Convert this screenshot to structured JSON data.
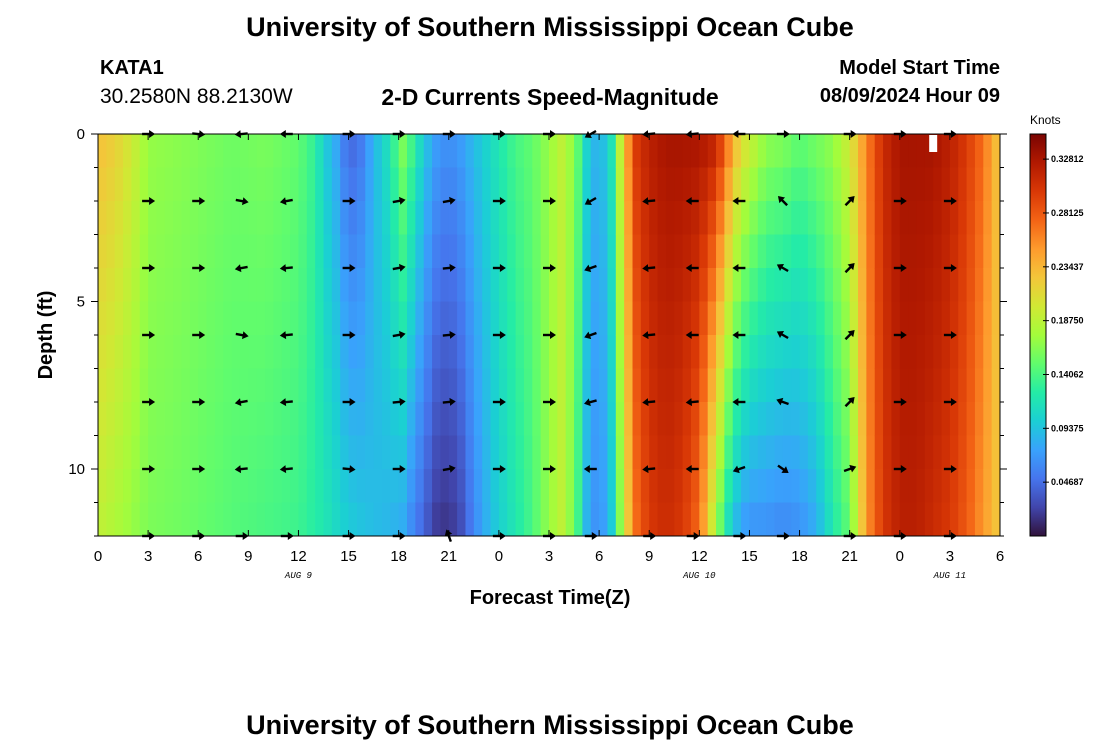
{
  "header": {
    "title": "University of Southern Mississippi Ocean Cube",
    "station": "KATA1",
    "coords": "30.2580N  88.2130W",
    "subtitle": "2-D Currents Speed-Magnitude",
    "model_start_label": "Model Start Time",
    "model_start_value": "08/09/2024 Hour 09"
  },
  "footer": {
    "title": "University of Southern Mississippi Ocean Cube"
  },
  "chart_data": {
    "type": "heatmap",
    "xlabel": "Forecast Time(Z)",
    "ylabel": "Depth (ft)",
    "x_range_hours": [
      0,
      54
    ],
    "y_range_ft": [
      0,
      12
    ],
    "y_reversed": true,
    "x_tick_labels": [
      "0",
      "3",
      "6",
      "9",
      "12",
      "15",
      "18",
      "21",
      "0",
      "3",
      "6",
      "9",
      "12",
      "15",
      "18",
      "21",
      "0",
      "3",
      "6"
    ],
    "y_tick_values": [
      0,
      5,
      10
    ],
    "day_labels": [
      {
        "text": "AUG 9",
        "at_tick": 4
      },
      {
        "text": "AUG 10",
        "at_tick": 12
      },
      {
        "text": "AUG 11",
        "at_tick": 17
      }
    ],
    "colorbar": {
      "unit": "Knots",
      "min": 0,
      "max": 0.35,
      "tick_values": [
        0.04687,
        0.09375,
        0.14062,
        0.1875,
        0.23437,
        0.28125,
        0.32812
      ],
      "tick_labels": [
        "0.04687",
        "0.09375",
        "0.14062",
        "0.18750",
        "0.23437",
        "0.28125",
        "0.32812"
      ],
      "colors": [
        "#30123b",
        "#4145ab",
        "#4675ed",
        "#39a2fc",
        "#1bcfd4",
        "#24eca6",
        "#61fc6c",
        "#a4fc3b",
        "#d1e834",
        "#f3c63a",
        "#fe9b2d",
        "#f36315",
        "#d93806",
        "#b11901",
        "#7a0402"
      ]
    },
    "speed_profile": {
      "hours": [
        0,
        1,
        2,
        3,
        5,
        8,
        10,
        12,
        13,
        13.5,
        14.2,
        15,
        15.7,
        16.5,
        17.5,
        18.2,
        18.8,
        19.5,
        20.2,
        21,
        21.8,
        22.5,
        23.5,
        25,
        26,
        27,
        27.8,
        28.6,
        29.3,
        30,
        30.8,
        31.5,
        32.2,
        33,
        34,
        35,
        36,
        37,
        37.7,
        38.4,
        39,
        40,
        41,
        42,
        43,
        44,
        45,
        46,
        47,
        48,
        49,
        50,
        51,
        52,
        53,
        54
      ],
      "surface": [
        0.23,
        0.22,
        0.2,
        0.17,
        0.165,
        0.155,
        0.16,
        0.15,
        0.13,
        0.1,
        0.08,
        0.04,
        0.05,
        0.085,
        0.12,
        0.165,
        0.14,
        0.1,
        0.075,
        0.065,
        0.075,
        0.09,
        0.11,
        0.14,
        0.15,
        0.17,
        0.19,
        0.16,
        0.1,
        0.08,
        0.12,
        0.23,
        0.3,
        0.32,
        0.33,
        0.33,
        0.33,
        0.32,
        0.27,
        0.22,
        0.2,
        0.17,
        0.165,
        0.15,
        0.16,
        0.17,
        0.2,
        0.26,
        0.31,
        0.33,
        0.33,
        0.33,
        0.32,
        0.3,
        0.27,
        0.22
      ],
      "bottom": [
        0.19,
        0.18,
        0.17,
        0.16,
        0.155,
        0.145,
        0.14,
        0.135,
        0.125,
        0.12,
        0.11,
        0.1,
        0.095,
        0.09,
        0.085,
        0.08,
        0.06,
        0.04,
        0.02,
        0.015,
        0.03,
        0.06,
        0.09,
        0.12,
        0.14,
        0.17,
        0.19,
        0.15,
        0.08,
        0.06,
        0.1,
        0.2,
        0.27,
        0.3,
        0.31,
        0.3,
        0.27,
        0.17,
        0.11,
        0.075,
        0.065,
        0.065,
        0.06,
        0.065,
        0.08,
        0.12,
        0.15,
        0.25,
        0.3,
        0.32,
        0.32,
        0.31,
        0.3,
        0.28,
        0.25,
        0.22
      ]
    },
    "vectors": {
      "hours": [
        3,
        6,
        8.6,
        11.3,
        15,
        18,
        21,
        24,
        27,
        29.5,
        33,
        35.6,
        38.4,
        41,
        45,
        48,
        51
      ],
      "depths_ft": [
        0,
        2,
        4,
        6,
        8,
        10,
        12
      ],
      "angles_deg": [
        [
          0,
          5,
          175,
          180,
          0,
          0,
          0,
          0,
          0,
          150,
          175,
          175,
          180,
          0,
          0,
          0,
          0
        ],
        [
          0,
          0,
          10,
          170,
          0,
          -10,
          -10,
          0,
          0,
          150,
          175,
          180,
          180,
          -135,
          -45,
          0,
          0
        ],
        [
          0,
          0,
          170,
          175,
          0,
          -10,
          -5,
          0,
          0,
          160,
          175,
          180,
          180,
          -150,
          -45,
          0,
          0
        ],
        [
          0,
          0,
          10,
          175,
          0,
          -10,
          -5,
          0,
          0,
          160,
          175,
          180,
          180,
          -150,
          -45,
          0,
          0
        ],
        [
          0,
          0,
          170,
          175,
          0,
          -5,
          -5,
          0,
          0,
          165,
          175,
          175,
          180,
          -160,
          -45,
          0,
          0
        ],
        [
          0,
          0,
          175,
          175,
          5,
          0,
          -10,
          0,
          0,
          180,
          175,
          180,
          160,
          35,
          -20,
          0,
          0
        ],
        [
          0,
          0,
          0,
          0,
          0,
          0,
          -110,
          0,
          0,
          0,
          0,
          0,
          0,
          0,
          0,
          0,
          0
        ]
      ]
    },
    "marker": {
      "hour": 50,
      "depth_ft": 0
    }
  }
}
